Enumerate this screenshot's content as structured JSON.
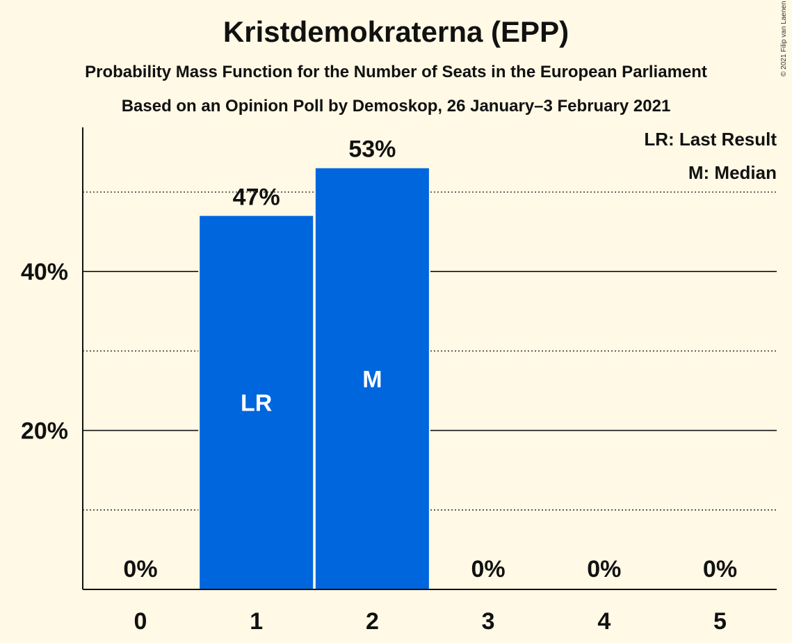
{
  "title": "Kristdemokraterna (EPP)",
  "subtitle1": "Probability Mass Function for the Number of Seats in the European Parliament",
  "subtitle2": "Based on an Opinion Poll by Demoskop, 26 January–3 February 2021",
  "copyright": "© 2021 Filip van Laenen",
  "legend": {
    "last_result": "LR: Last Result",
    "median": "M: Median"
  },
  "colors": {
    "bar": "#0066DD",
    "background": "#FFF9E5"
  },
  "chart_data": {
    "type": "bar",
    "categories": [
      "0",
      "1",
      "2",
      "3",
      "4",
      "5"
    ],
    "values": [
      0,
      47,
      53,
      0,
      0,
      0
    ],
    "value_labels": [
      "0%",
      "47%",
      "53%",
      "0%",
      "0%",
      "0%"
    ],
    "bar_markers": [
      "",
      "LR",
      "M",
      "",
      "",
      ""
    ],
    "ylim": [
      0,
      58
    ],
    "yticks_major": [
      20,
      40
    ],
    "ytick_labels": [
      "20%",
      "40%"
    ],
    "yticks_minor": [
      10,
      30,
      50
    ],
    "legend_placement": "top-right",
    "grid": true
  }
}
